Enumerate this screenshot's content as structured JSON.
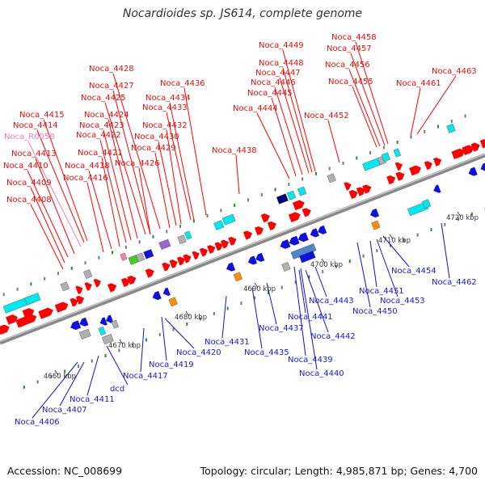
{
  "title": "Nocardioides sp. JS614, complete genome",
  "footer": {
    "accession": "Accession: NC_008699",
    "topology": "Topology: circular; Length: 4,985,871 bp; Genes: 4,700"
  },
  "colors": {
    "forward": "#ff0000",
    "reverse": "#1010e0",
    "backbone": "#888888",
    "rna": "#f080b0",
    "cyan": "#00e8f0",
    "orange": "#ff8c00",
    "green": "#44cc22",
    "purple": "#9966cc",
    "navy": "#000080",
    "gray": "#b0b0b0"
  },
  "scale_labels": [
    "4660 kbp",
    "4670 kbp",
    "4680 kbp",
    "4690 kbp",
    "4700 kbp",
    "4710 kbp",
    "4720 kbp"
  ],
  "top_labels": [
    "Noca_4408",
    "Noca_4409",
    "Noca_4410",
    "Noca_4413",
    "Noca_R0058",
    "Noca_4414",
    "Noca_4415",
    "Noca_4416",
    "Noca_4418",
    "Noca_4421",
    "Noca_4422",
    "Noca_4423",
    "Noca_4424",
    "Noca_4425",
    "Noca_4426",
    "Noca_4427",
    "Noca_4428",
    "Noca_4429",
    "Noca_4430",
    "Noca_4432",
    "Noca_4433",
    "Noca_4434",
    "Noca_4436",
    "Noca_4438",
    "Noca_4444",
    "Noca_4445",
    "Noca_4446",
    "Noca_4447",
    "Noca_4448",
    "Noca_4449",
    "Noca_4452",
    "Noca_4455",
    "Noca_4456",
    "Noca_4457",
    "Noca_4458",
    "Noca_4461",
    "Noca_4463"
  ],
  "bottom_labels": [
    "Noca_4406",
    "Noca_4407",
    "Noca_4411",
    "dcd",
    "Noca_4417",
    "Noca_4419",
    "Noca_4420",
    "Noca_4431",
    "Noca_4435",
    "Noca_4437",
    "Noca_4439",
    "Noca_4440",
    "Noca_4441",
    "Noca_4442",
    "Noca_4443",
    "Noca_4450",
    "Noca_4451",
    "Noca_4453",
    "Noca_4454",
    "Noca_4462"
  ]
}
